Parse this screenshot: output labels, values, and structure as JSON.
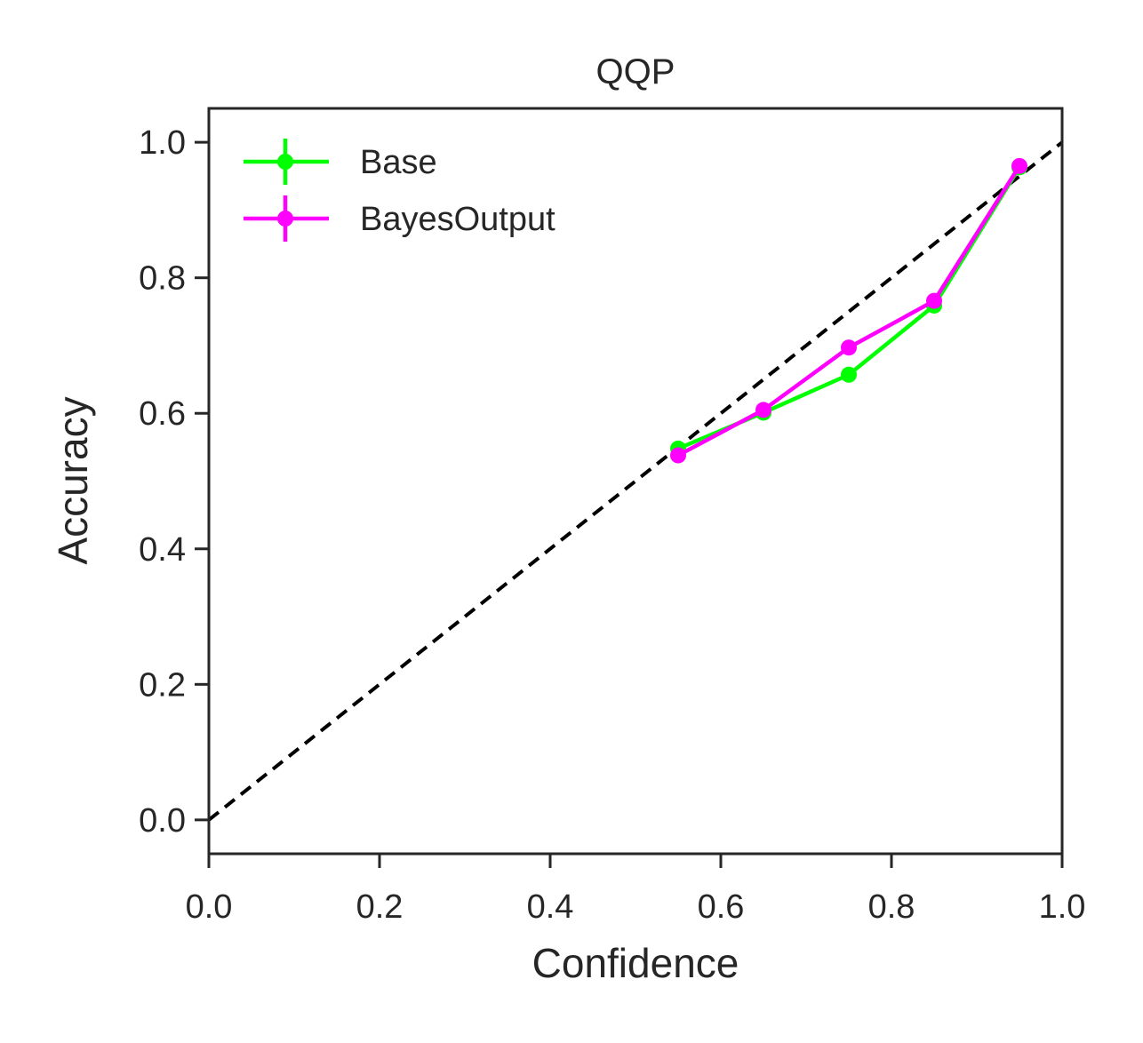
{
  "chart_data": {
    "type": "line",
    "title": "QQP",
    "xlabel": "Confidence",
    "ylabel": "Accuracy",
    "xlim": [
      0.0,
      1.0
    ],
    "ylim": [
      -0.05,
      1.05
    ],
    "xticks": [
      "0.0",
      "0.2",
      "0.4",
      "0.6",
      "0.8",
      "1.0"
    ],
    "yticks": [
      "0.0",
      "0.2",
      "0.4",
      "0.6",
      "0.8",
      "1.0"
    ],
    "grid": false,
    "legend_position": "top-left",
    "reference_line": {
      "style": "dashed",
      "color": "#000000",
      "x": [
        0.0,
        1.0
      ],
      "y": [
        0.0,
        1.0
      ]
    },
    "series": [
      {
        "name": "Base",
        "color": "#00ff00",
        "x": [
          0.55,
          0.65,
          0.75,
          0.85,
          0.95
        ],
        "y": [
          0.548,
          0.601,
          0.657,
          0.759,
          0.963
        ]
      },
      {
        "name": "BayesOutput",
        "color": "#ff00ff",
        "x": [
          0.55,
          0.65,
          0.75,
          0.85,
          0.95
        ],
        "y": [
          0.538,
          0.605,
          0.697,
          0.766,
          0.965
        ]
      }
    ]
  }
}
